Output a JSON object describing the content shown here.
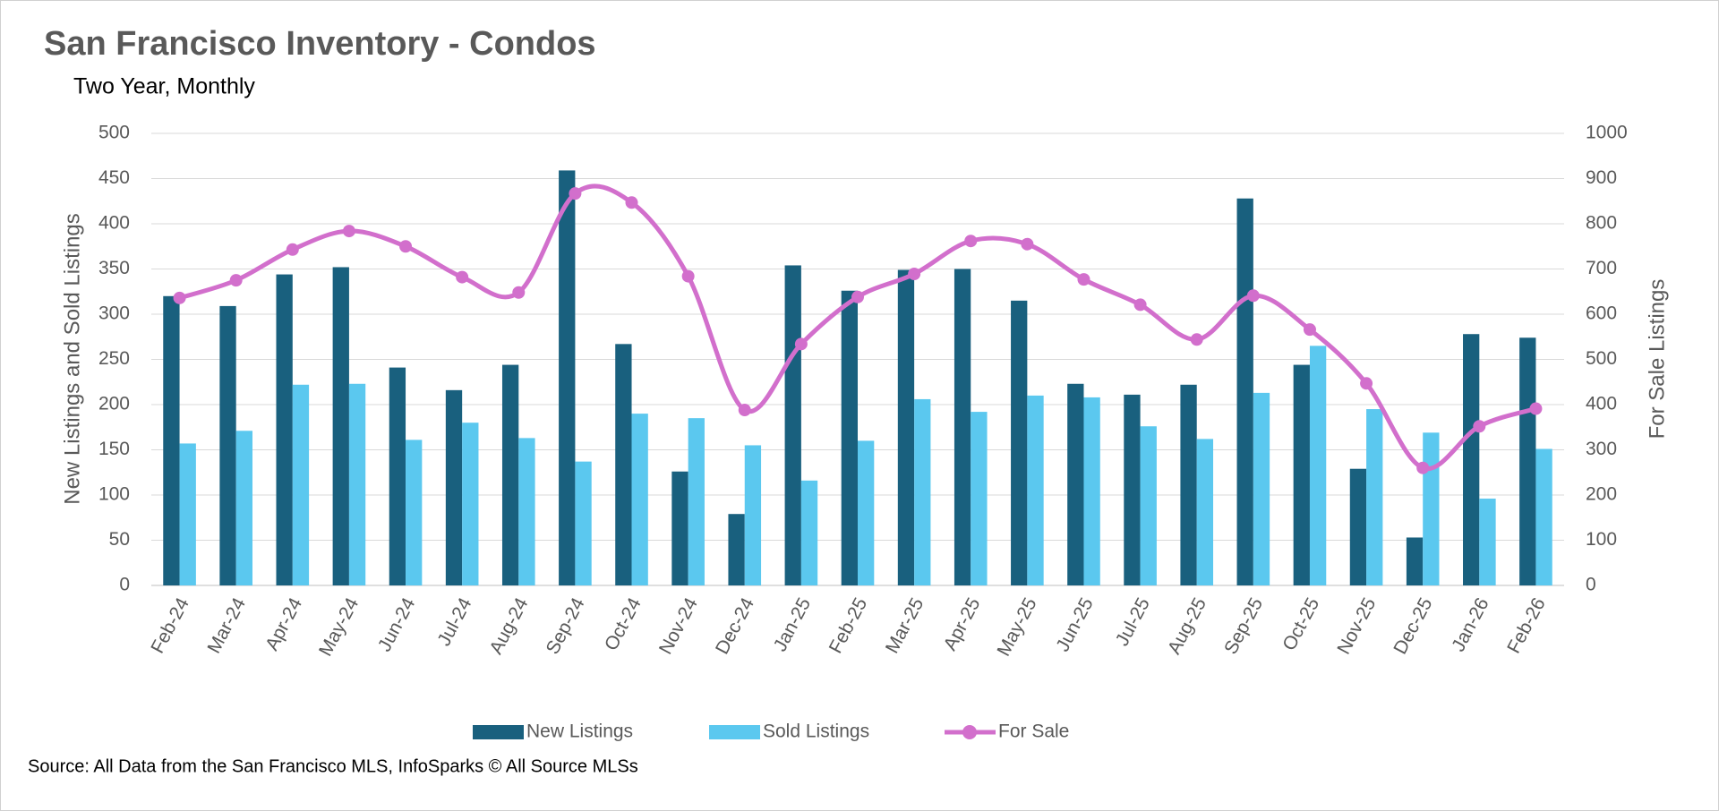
{
  "chart_data": {
    "type": "bar-line",
    "title": "San Francisco Inventory - Condos",
    "subtitle": "Two Year, Monthly",
    "source": "Source: All Data from the San Francisco MLS, InfoSparks © All Source MLSs",
    "y_label": "New Listings and Sold Listings",
    "y2_label": "For Sale Listings",
    "categories": [
      "Feb-24",
      "Mar-24",
      "Apr-24",
      "May-24",
      "Jun-24",
      "Jul-24",
      "Aug-24",
      "Sep-24",
      "Oct-24",
      "Nov-24",
      "Dec-24",
      "Jan-25",
      "Feb-25",
      "Mar-25",
      "Apr-25",
      "May-25",
      "Jun-25",
      "Jul-25",
      "Aug-25",
      "Sep-25",
      "Oct-25",
      "Nov-25",
      "Dec-25",
      "Jan-26",
      "Feb-26"
    ],
    "series": [
      {
        "name": "New Listings",
        "type": "bar",
        "color": "#19607e",
        "values": [
          320,
          309,
          344,
          352,
          241,
          216,
          244,
          459,
          267,
          126,
          79,
          354,
          326,
          349,
          350,
          315,
          223,
          211,
          222,
          428,
          244,
          129,
          53,
          278,
          274
        ]
      },
      {
        "name": "Sold Listings",
        "type": "bar",
        "color": "#5bc8ef",
        "values": [
          157,
          171,
          222,
          223,
          161,
          180,
          163,
          137,
          190,
          185,
          155,
          116,
          160,
          206,
          192,
          210,
          208,
          176,
          162,
          213,
          265,
          195,
          169,
          96,
          151
        ]
      },
      {
        "name": "For Sale",
        "type": "line",
        "axis": "y2",
        "color": "#d26fcc",
        "values": [
          636,
          675,
          743,
          784,
          750,
          682,
          648,
          867,
          847,
          684,
          388,
          534,
          638,
          689,
          762,
          755,
          677,
          621,
          544,
          641,
          566,
          447,
          260,
          352,
          391
        ]
      }
    ],
    "ylim": [
      0,
      500
    ],
    "yticks": [
      0,
      50,
      100,
      150,
      200,
      250,
      300,
      350,
      400,
      450,
      500
    ],
    "y2lim": [
      0,
      1000
    ],
    "y2ticks": [
      0,
      100,
      200,
      300,
      400,
      500,
      600,
      700,
      800,
      900,
      1000
    ],
    "grid": true,
    "legend": "bottom"
  }
}
